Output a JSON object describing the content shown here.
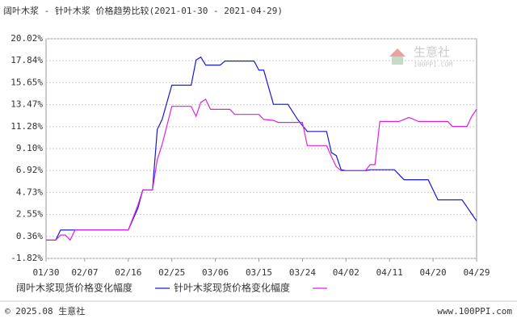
{
  "chart_data": {
    "type": "line",
    "title": "阔叶木浆 - 针叶木浆 价格趋势比较(2021-01-30 - 2021-04-29)",
    "x": [
      "2021-01-30",
      "2021-02-01",
      "2021-02-02",
      "2021-02-03",
      "2021-02-04",
      "2021-02-05",
      "2021-02-16",
      "2021-02-18",
      "2021-02-19",
      "2021-02-21",
      "2021-02-22",
      "2021-02-23",
      "2021-02-25",
      "2021-03-01",
      "2021-03-02",
      "2021-03-03",
      "2021-03-04",
      "2021-03-05",
      "2021-03-07",
      "2021-03-08",
      "2021-03-09",
      "2021-03-10",
      "2021-03-14",
      "2021-03-15",
      "2021-03-16",
      "2021-03-18",
      "2021-03-19",
      "2021-03-21",
      "2021-03-23",
      "2021-03-24",
      "2021-03-25",
      "2021-03-29",
      "2021-03-30",
      "2021-03-31",
      "2021-04-01",
      "2021-04-02",
      "2021-04-06",
      "2021-04-07",
      "2021-04-08",
      "2021-04-09",
      "2021-04-12",
      "2021-04-13",
      "2021-04-14",
      "2021-04-15",
      "2021-04-17",
      "2021-04-19",
      "2021-04-21",
      "2021-04-23",
      "2021-04-24",
      "2021-04-26",
      "2021-04-27",
      "2021-04-28",
      "2021-04-29"
    ],
    "series": [
      {
        "name": "阔叶木浆现货价格变化幅度",
        "color": "#1a1acc",
        "values": [
          0,
          0,
          1.0,
          1.0,
          1.0,
          1.0,
          1.0,
          3.2,
          5.0,
          5.0,
          11.0,
          12.0,
          15.4,
          15.4,
          17.9,
          18.2,
          17.4,
          17.4,
          17.4,
          17.8,
          17.8,
          17.8,
          17.8,
          16.9,
          16.9,
          13.5,
          13.5,
          13.5,
          12.0,
          11.4,
          10.8,
          10.8,
          8.7,
          8.4,
          7.0,
          6.9,
          6.9,
          7.0,
          7.0,
          7.0,
          7.0,
          6.5,
          6.0,
          6.0,
          6.0,
          6.0,
          4.0,
          4.0,
          4.0,
          4.0,
          3.3,
          2.6,
          1.9
        ]
      },
      {
        "name": "针叶木浆现货价格变化幅度",
        "color": "#dd22dd",
        "values": [
          0,
          0,
          0.5,
          0.5,
          0.0,
          1.0,
          1.0,
          3.5,
          5.0,
          5.0,
          8.0,
          9.5,
          13.3,
          13.3,
          12.3,
          13.7,
          14.0,
          13.0,
          13.0,
          13.0,
          13.0,
          12.5,
          12.5,
          12.5,
          12.0,
          11.9,
          11.7,
          11.7,
          11.7,
          11.7,
          9.4,
          9.4,
          8.3,
          7.3,
          6.9,
          6.9,
          6.9,
          7.5,
          7.5,
          11.8,
          11.8,
          11.8,
          12.0,
          12.2,
          11.8,
          11.8,
          11.8,
          11.8,
          11.3,
          11.3,
          11.3,
          12.3,
          13.0
        ]
      }
    ],
    "xlim": [
      "2021-01-30",
      "2021-04-29"
    ],
    "xticks": [
      {
        "value": "2021-01-30",
        "label": "01/30"
      },
      {
        "value": "2021-02-07",
        "label": "02/07"
      },
      {
        "value": "2021-02-16",
        "label": "02/16"
      },
      {
        "value": "2021-02-25",
        "label": "02/25"
      },
      {
        "value": "2021-03-06",
        "label": "03/06"
      },
      {
        "value": "2021-03-15",
        "label": "03/15"
      },
      {
        "value": "2021-03-24",
        "label": "03/24"
      },
      {
        "value": "2021-04-02",
        "label": "04/02"
      },
      {
        "value": "2021-04-11",
        "label": "04/11"
      },
      {
        "value": "2021-04-20",
        "label": "04/20"
      },
      {
        "value": "2021-04-29",
        "label": "04/29"
      }
    ],
    "ylim": [
      -1.82,
      20.02
    ],
    "yticks": [
      {
        "value": -1.82,
        "label": "-1.82%"
      },
      {
        "value": 0.36,
        "label": "0.36%"
      },
      {
        "value": 2.55,
        "label": "2.55%"
      },
      {
        "value": 4.73,
        "label": "4.73%"
      },
      {
        "value": 6.92,
        "label": "6.92%"
      },
      {
        "value": 9.1,
        "label": "9.10%"
      },
      {
        "value": 11.28,
        "label": "11.28%"
      },
      {
        "value": 13.47,
        "label": "13.47%"
      },
      {
        "value": 15.65,
        "label": "15.65%"
      },
      {
        "value": 17.84,
        "label": "17.84%"
      },
      {
        "value": 20.02,
        "label": "20.02%"
      }
    ],
    "grid": true,
    "watermark": {
      "name": "生意社",
      "url": "100PPI.COM"
    },
    "footer": {
      "copyright": "© 2025.08 生意社",
      "site": "www.100PPI.com"
    }
  }
}
